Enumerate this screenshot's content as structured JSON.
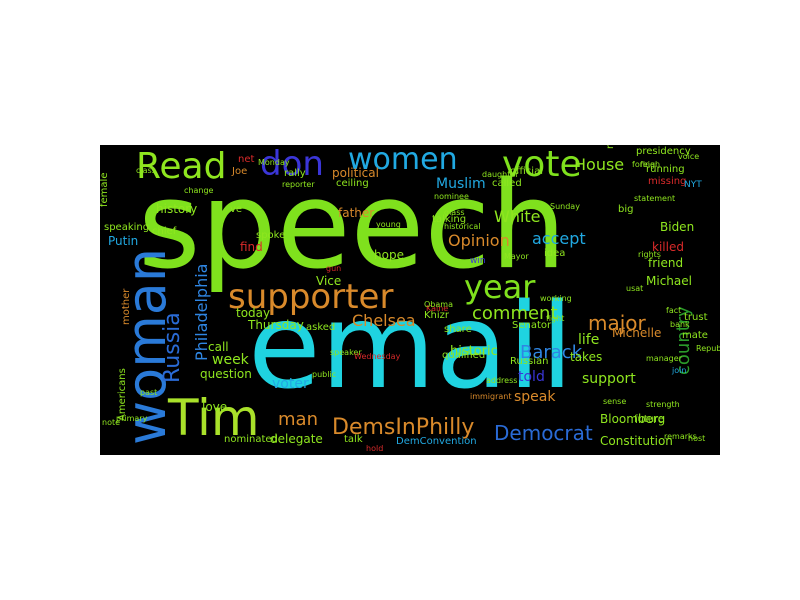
{
  "wordcloud": {
    "background": "#000000",
    "words": [
      {
        "text": "speech",
        "color": "#7fe11d"
      },
      {
        "text": "email",
        "color": "#1fd3e0"
      },
      {
        "text": "woman",
        "color": "#2a7ad8"
      },
      {
        "text": "Tim",
        "color": "#a9e12a"
      },
      {
        "text": "supporter",
        "color": "#d98a2b"
      },
      {
        "text": "year",
        "color": "#7fe11d"
      },
      {
        "text": "Read",
        "color": "#8fe61f"
      },
      {
        "text": "don",
        "color": "#3b36d8"
      },
      {
        "text": "women",
        "color": "#21a9e2"
      },
      {
        "text": "vote",
        "color": "#7fe11d"
      },
      {
        "text": "Russia",
        "color": "#2a6bd6"
      },
      {
        "text": "DemsInPhilly",
        "color": "#d98a2b"
      },
      {
        "text": "Democrat",
        "color": "#2a6bd6"
      },
      {
        "text": "man",
        "color": "#d98a2b"
      },
      {
        "text": "Barack",
        "color": "#2f86e3"
      },
      {
        "text": "major",
        "color": "#d98a2b"
      },
      {
        "text": "comment",
        "color": "#8fe61f"
      },
      {
        "text": "Chelsea",
        "color": "#d98a2b"
      },
      {
        "text": "country",
        "color": "#2a9a2a"
      },
      {
        "text": "Philadelphia",
        "color": "#2f86e3"
      },
      {
        "text": "White",
        "color": "#8fe61f"
      },
      {
        "text": "Opinion",
        "color": "#d98a2b"
      },
      {
        "text": "House",
        "color": "#8fe61f"
      },
      {
        "text": "Muslim",
        "color": "#21a9e2"
      },
      {
        "text": "accept",
        "color": "#21a9e2"
      },
      {
        "text": "life",
        "color": "#8fe61f"
      },
      {
        "text": "support",
        "color": "#8fe61f"
      },
      {
        "text": "told",
        "color": "#3b36d8"
      },
      {
        "text": "speak",
        "color": "#d98a2b"
      },
      {
        "text": "week",
        "color": "#8fe61f"
      },
      {
        "text": "voter",
        "color": "#21a9e2"
      },
      {
        "text": "delegate",
        "color": "#8fe61f"
      },
      {
        "text": "political",
        "color": "#d98a2b"
      },
      {
        "text": "history",
        "color": "#8fe61f"
      },
      {
        "text": "Putin",
        "color": "#21a9e2"
      },
      {
        "text": "hope",
        "color": "#8fe61f"
      },
      {
        "text": "call",
        "color": "#8fe61f"
      },
      {
        "text": "Michael",
        "color": "#8fe61f"
      },
      {
        "text": "historic",
        "color": "#8fe61f"
      },
      {
        "text": "find",
        "color": "#d92a2a"
      },
      {
        "text": "love",
        "color": "#8fe61f"
      },
      {
        "text": "question",
        "color": "#8fe61f"
      },
      {
        "text": "Thursday",
        "color": "#8fe61f"
      },
      {
        "text": "today",
        "color": "#8fe61f"
      },
      {
        "text": "Vice",
        "color": "#8fe61f"
      },
      {
        "text": "friend",
        "color": "#8fe61f"
      },
      {
        "text": "killed",
        "color": "#d92a2a"
      },
      {
        "text": "Biden",
        "color": "#8fe61f"
      },
      {
        "text": "takes",
        "color": "#8fe61f"
      },
      {
        "text": "Russian",
        "color": "#8fe61f"
      },
      {
        "text": "Michelle",
        "color": "#d98a2b"
      },
      {
        "text": "Bloomberg",
        "color": "#8fe61f"
      },
      {
        "text": "Constitution",
        "color": "#8fe61f"
      },
      {
        "text": "talk",
        "color": "#8fe61f"
      },
      {
        "text": "DemConvention",
        "color": "#21a9e2"
      },
      {
        "text": "nominated",
        "color": "#8fe61f"
      },
      {
        "text": "Americans",
        "color": "#8fe61f"
      },
      {
        "text": "mother",
        "color": "#d98a2b"
      },
      {
        "text": "father",
        "color": "#d98a2b"
      },
      {
        "text": "rally",
        "color": "#8fe61f"
      },
      {
        "text": "Joe",
        "color": "#d98a2b"
      },
      {
        "text": "ceiling",
        "color": "#8fe61f"
      },
      {
        "text": "official",
        "color": "#8fe61f"
      },
      {
        "text": "called",
        "color": "#8fe61f"
      },
      {
        "text": "presidency",
        "color": "#8fe61f"
      },
      {
        "text": "running",
        "color": "#8fe61f"
      },
      {
        "text": "missing",
        "color": "#d92a2a"
      },
      {
        "text": "spoke",
        "color": "#8fe61f"
      },
      {
        "text": "nation",
        "color": "#8fe61f"
      },
      {
        "text": "female",
        "color": "#8fe61f"
      },
      {
        "text": "asked",
        "color": "#8fe61f"
      },
      {
        "text": "Senator",
        "color": "#8fe61f"
      },
      {
        "text": "future",
        "color": "#8fe61f"
      },
      {
        "text": "trust",
        "color": "#8fe61f"
      },
      {
        "text": "big",
        "color": "#8fe61f"
      },
      {
        "text": "idea",
        "color": "#8fe61f"
      },
      {
        "text": "share",
        "color": "#8fe61f"
      },
      {
        "text": "gun",
        "color": "#d92a2a"
      },
      {
        "text": "speaking",
        "color": "#8fe61f"
      },
      {
        "text": "chief",
        "color": "#8fe61f"
      },
      {
        "text": "ve",
        "color": "#8fe61f"
      },
      {
        "text": "qualified",
        "color": "#8fe61f"
      },
      {
        "text": "NYT",
        "color": "#21a9e2"
      },
      {
        "text": "mate",
        "color": "#8fe61f"
      },
      {
        "text": "fact",
        "color": "#8fe61f"
      },
      {
        "text": "win",
        "color": "#3b36d8"
      },
      {
        "text": "talking",
        "color": "#8fe61f"
      },
      {
        "text": "Khizr",
        "color": "#8fe61f"
      },
      {
        "text": "net",
        "color": "#d92a2a"
      },
      {
        "text": "foreign",
        "color": "#8fe61f"
      },
      {
        "text": "reporter",
        "color": "#8fe61f"
      },
      {
        "text": "remarks",
        "color": "#8fe61f"
      },
      {
        "text": "glass",
        "color": "#8fe61f"
      },
      {
        "text": "past",
        "color": "#8fe61f"
      },
      {
        "text": "daughter",
        "color": "#8fe61f"
      },
      {
        "text": "Republicans",
        "color": "#8fe61f"
      },
      {
        "text": "Kaine",
        "color": "#d92a2a"
      },
      {
        "text": "Obama",
        "color": "#8fe61f"
      },
      {
        "text": "nominee",
        "color": "#8fe61f"
      },
      {
        "text": "Mayor",
        "color": "#8fe61f"
      },
      {
        "text": "address",
        "color": "#8fe61f"
      },
      {
        "text": "change",
        "color": "#8fe61f"
      },
      {
        "text": "Sunday",
        "color": "#8fe61f"
      },
      {
        "text": "immigrant",
        "color": "#d98a2b"
      },
      {
        "text": "voice",
        "color": "#8fe61f"
      },
      {
        "text": "primary",
        "color": "#8fe61f"
      },
      {
        "text": "young",
        "color": "#8fe61f"
      },
      {
        "text": "manager",
        "color": "#8fe61f"
      },
      {
        "text": "bank",
        "color": "#8fe61f"
      },
      {
        "text": "host",
        "color": "#8fe61f"
      },
      {
        "text": "fight",
        "color": "#8fe61f"
      },
      {
        "text": "speaker",
        "color": "#8fe61f"
      },
      {
        "text": "working",
        "color": "#8fe61f"
      },
      {
        "text": "statement",
        "color": "#8fe61f"
      },
      {
        "text": "rights",
        "color": "#8fe61f"
      },
      {
        "text": "hold",
        "color": "#d92a2a"
      },
      {
        "text": "usat",
        "color": "#8fe61f"
      },
      {
        "text": "strength",
        "color": "#8fe61f"
      },
      {
        "text": "Wednesday",
        "color": "#d92a2a"
      },
      {
        "text": "Monday",
        "color": "#8fe61f"
      },
      {
        "text": "historical",
        "color": "#8fe61f"
      },
      {
        "text": "class",
        "color": "#8fe61f"
      },
      {
        "text": "note",
        "color": "#8fe61f"
      },
      {
        "text": "public",
        "color": "#8fe61f"
      },
      {
        "text": "join",
        "color": "#21a9e2"
      },
      {
        "text": "sense",
        "color": "#8fe61f"
      },
      {
        "text": "final",
        "color": "#8fe61f"
      }
    ]
  }
}
